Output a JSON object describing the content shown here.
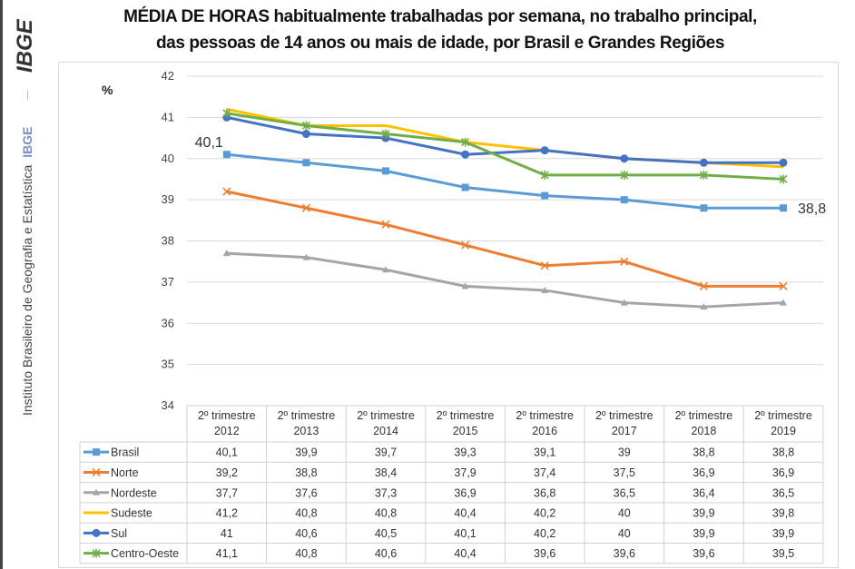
{
  "sidebar": {
    "logo_text": "IBGE",
    "institution": "Instituto Brasileiro de Geografia e Estatística",
    "institution_abbr": "IBGE"
  },
  "chart_data": {
    "type": "line",
    "title": [
      "MÉDIA DE HORAS habitualmente trabalhadas por semana, no trabalho principal,",
      "das pessoas de 14 anos ou mais de idade, por Brasil e Grandes Regiões"
    ],
    "ylabel": "%",
    "ylim": [
      34,
      42
    ],
    "yticks": [
      34,
      35,
      36,
      37,
      38,
      39,
      40,
      41,
      42
    ],
    "grid": true,
    "legend": "data-table-below",
    "categories": [
      [
        "2º trimestre",
        "2012"
      ],
      [
        "2º trimestre",
        "2013"
      ],
      [
        "2º trimestre",
        "2014"
      ],
      [
        "2º trimestre",
        "2015"
      ],
      [
        "2º trimestre",
        "2016"
      ],
      [
        "2º trimestre",
        "2017"
      ],
      [
        "2º trimestre",
        "2018"
      ],
      [
        "2º trimestre",
        "2019"
      ]
    ],
    "series": [
      {
        "name": "Brasil",
        "color": "#5b9bd5",
        "marker": "square",
        "values": [
          40.1,
          39.9,
          39.7,
          39.3,
          39.1,
          39,
          38.8,
          38.8
        ],
        "labels": [
          "40,1",
          "39,9",
          "39,7",
          "39,3",
          "39,1",
          "39",
          "38,8",
          "38,8"
        ]
      },
      {
        "name": "Norte",
        "color": "#ed7d31",
        "marker": "x",
        "values": [
          39.2,
          38.8,
          38.4,
          37.9,
          37.4,
          37.5,
          36.9,
          36.9
        ],
        "labels": [
          "39,2",
          "38,8",
          "38,4",
          "37,9",
          "37,4",
          "37,5",
          "36,9",
          "36,9"
        ]
      },
      {
        "name": "Nordeste",
        "color": "#a5a5a5",
        "marker": "triangle",
        "values": [
          37.7,
          37.6,
          37.3,
          36.9,
          36.8,
          36.5,
          36.4,
          36.5
        ],
        "labels": [
          "37,7",
          "37,6",
          "37,3",
          "36,9",
          "36,8",
          "36,5",
          "36,4",
          "36,5"
        ]
      },
      {
        "name": "Sudeste",
        "color": "#ffc000",
        "marker": "none",
        "values": [
          41.2,
          40.8,
          40.8,
          40.4,
          40.2,
          40,
          39.9,
          39.8
        ],
        "labels": [
          "41,2",
          "40,8",
          "40,8",
          "40,4",
          "40,2",
          "40",
          "39,9",
          "39,8"
        ]
      },
      {
        "name": "Sul",
        "color": "#4472c4",
        "marker": "circle",
        "values": [
          41,
          40.6,
          40.5,
          40.1,
          40.2,
          40,
          39.9,
          39.9
        ],
        "labels": [
          "41",
          "40,6",
          "40,5",
          "40,1",
          "40,2",
          "40",
          "39,9",
          "39,9"
        ]
      },
      {
        "name": "Centro-Oeste",
        "color": "#70ad47",
        "marker": "star",
        "values": [
          41.1,
          40.8,
          40.6,
          40.4,
          39.6,
          39.6,
          39.6,
          39.5
        ],
        "labels": [
          "41,1",
          "40,8",
          "40,6",
          "40,4",
          "39,6",
          "39,6",
          "39,6",
          "39,5"
        ]
      }
    ],
    "annotations": [
      {
        "series": "Brasil",
        "point": 0,
        "text": "40,1"
      },
      {
        "series": "Brasil",
        "point": 7,
        "text": "38,8"
      }
    ]
  }
}
